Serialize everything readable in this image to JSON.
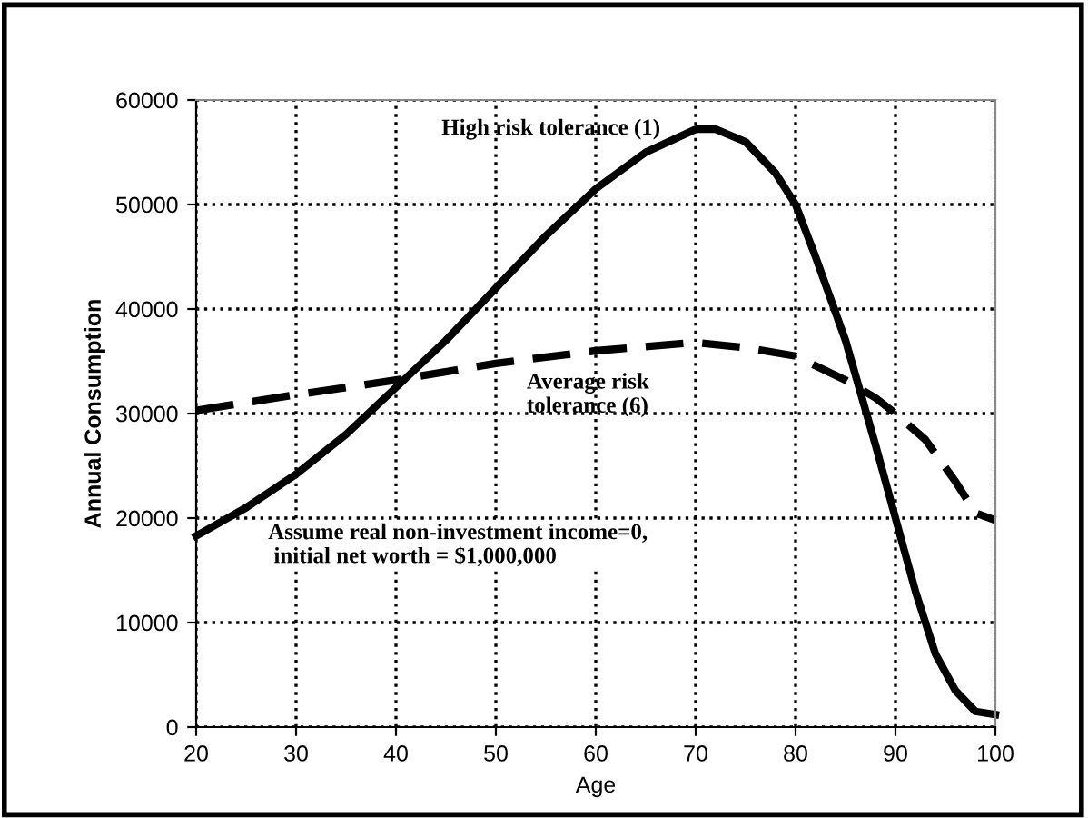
{
  "chart_data": {
    "type": "line",
    "xlabel": "Age",
    "ylabel": "Annual Consumption",
    "xlim": [
      20,
      100
    ],
    "xticks": [
      20,
      30,
      40,
      50,
      60,
      70,
      80,
      90,
      100
    ],
    "ylim": [
      0,
      60000
    ],
    "yticks": [
      0,
      10000,
      20000,
      30000,
      40000,
      50000,
      60000
    ],
    "grid": true,
    "legend": false,
    "annotations": [
      "Assume real non-investment income=0,\n initial net worth = $1,000,000"
    ],
    "series": [
      {
        "name": "High risk tolerance (1)",
        "color": "#000000",
        "line_style": "solid",
        "x": [
          20,
          25,
          30,
          35,
          40,
          45,
          50,
          55,
          60,
          65,
          70,
          72,
          75,
          78,
          80,
          82,
          85,
          88,
          90,
          92,
          94,
          96,
          98,
          100
        ],
        "values": [
          18300,
          21000,
          24200,
          28000,
          32500,
          37000,
          42000,
          47000,
          51500,
          55000,
          57200,
          57200,
          56000,
          53000,
          50000,
          45000,
          37000,
          27000,
          20000,
          13000,
          7000,
          3500,
          1500,
          1200
        ]
      },
      {
        "name": "Average risk\ntolerance (6)",
        "color": "#000000",
        "line_style": "dashed",
        "x": [
          20,
          30,
          40,
          50,
          60,
          70,
          75,
          80,
          85,
          88,
          90,
          93,
          96,
          98,
          100
        ],
        "values": [
          30300,
          31800,
          33200,
          34800,
          36000,
          36800,
          36300,
          35500,
          33200,
          31500,
          30000,
          27500,
          23500,
          20500,
          19800
        ]
      }
    ]
  }
}
